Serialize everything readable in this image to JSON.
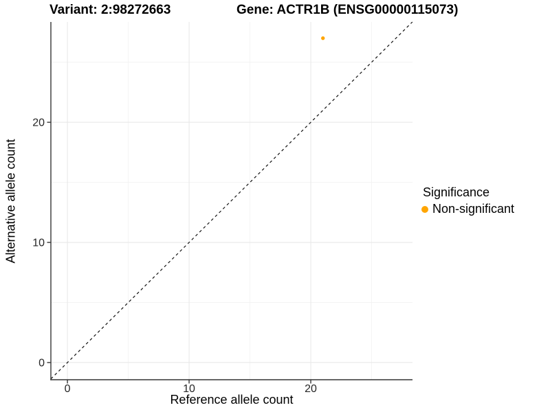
{
  "header": {
    "variant_title": "Variant: 2:98272663",
    "gene_title": "Gene: ACTR1B (ENSG00000115073)"
  },
  "legend": {
    "title": "Significance",
    "items": [
      {
        "label": "Non-significant",
        "color": "#FFA500",
        "marker": "filled-circle"
      }
    ]
  },
  "chart_data": {
    "type": "scatter",
    "titles": [
      "Variant: 2:98272663",
      "Gene: ACTR1B (ENSG00000115073)"
    ],
    "xlabel": "Reference allele count",
    "ylabel": "Alternative allele count",
    "xlim": [
      -1.36,
      28.36
    ],
    "ylim": [
      -1.43,
      28.35
    ],
    "x_ticks": [
      0,
      10,
      20
    ],
    "y_ticks": [
      0,
      10,
      20
    ],
    "x_minor_ticks": [
      5,
      15,
      25
    ],
    "y_minor_ticks": [
      5,
      15,
      25
    ],
    "grid": true,
    "legend_position": "right",
    "legend_title": "Significance",
    "series": [
      {
        "name": "Non-significant",
        "color": "#FFA500",
        "points": [
          {
            "x": 21,
            "y": 27
          }
        ]
      }
    ],
    "reference_line": {
      "type": "identity y=x",
      "style": "dashed",
      "color": "#111111"
    },
    "colors": {
      "background": "#ffffff",
      "grid_major": "#e8e8e8",
      "grid_minor": "#f3f3f3",
      "axis_line": "#333333",
      "tick_label": "#262626",
      "point": "#FFA500"
    }
  }
}
